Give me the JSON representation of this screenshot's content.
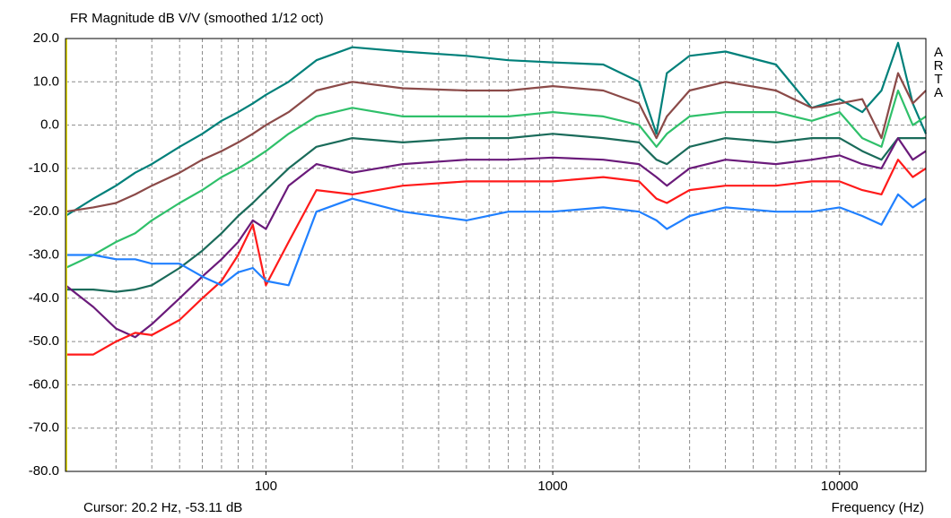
{
  "chart_data": {
    "type": "line",
    "title": "FR Magnitude dB V/V (smoothed 1/12 oct)",
    "cursor_text": "Cursor: 20.2 Hz, -53.11 dB",
    "x_label": "Frequency (Hz)",
    "brand": "ARTA",
    "log_x": true,
    "grid": true,
    "xlim": [
      20,
      20000
    ],
    "ylim": [
      -80,
      20
    ],
    "xticks": [
      100,
      1000,
      10000
    ],
    "xgrid": [
      30,
      40,
      50,
      60,
      70,
      80,
      90,
      100,
      200,
      300,
      400,
      500,
      600,
      700,
      800,
      900,
      1000,
      2000,
      3000,
      4000,
      5000,
      6000,
      7000,
      8000,
      9000,
      10000
    ],
    "yticks": [
      {
        "value": -80,
        "label": "-80.0"
      },
      {
        "value": -70,
        "label": "-70.0"
      },
      {
        "value": -60,
        "label": "-60.0"
      },
      {
        "value": -50,
        "label": "-50.0"
      },
      {
        "value": -40,
        "label": "-40.0"
      },
      {
        "value": -30,
        "label": "-30.0"
      },
      {
        "value": -20,
        "label": "-20.0"
      },
      {
        "value": -10,
        "label": "-10.0"
      },
      {
        "value": 0,
        "label": "0.0"
      },
      {
        "value": 10,
        "label": "10.0"
      },
      {
        "value": 20,
        "label": "20.0"
      }
    ],
    "x": [
      20,
      25,
      30,
      35,
      40,
      50,
      60,
      70,
      80,
      90,
      100,
      120,
      150,
      200,
      300,
      500,
      700,
      1000,
      1500,
      2000,
      2300,
      2500,
      3000,
      4000,
      6000,
      8000,
      10000,
      12000,
      14000,
      16000,
      18000,
      20000
    ],
    "series": [
      {
        "color": "#00807a",
        "values": [
          -21,
          -17,
          -14,
          -11,
          -9,
          -5,
          -2,
          1,
          3,
          5,
          7,
          10,
          15,
          18,
          17,
          16,
          15,
          14.5,
          14,
          10,
          -2,
          12,
          16,
          17,
          14,
          4,
          6,
          3,
          8,
          19,
          5,
          -2
        ]
      },
      {
        "color": "#8b4a48",
        "values": [
          -20,
          -19,
          -18,
          -16,
          -14,
          -11,
          -8,
          -6,
          -4,
          -2,
          0,
          3,
          8,
          10,
          8.5,
          8,
          8,
          9,
          8,
          5,
          -3,
          2,
          8,
          10,
          8,
          4,
          5,
          6,
          -3,
          12,
          5,
          8
        ]
      },
      {
        "color": "#2fc06a",
        "values": [
          -33,
          -30,
          -27,
          -25,
          -22,
          -18,
          -15,
          -12,
          -10,
          -8,
          -6,
          -2,
          2,
          4,
          2,
          2,
          2,
          3,
          2,
          0,
          -5,
          -2,
          2,
          3,
          3,
          1,
          3,
          -3,
          -5,
          8,
          0,
          2
        ]
      },
      {
        "color": "#1a6b5a",
        "values": [
          -38,
          -38,
          -38.5,
          -38,
          -37,
          -33,
          -29,
          -25,
          -21,
          -18,
          -15,
          -10,
          -5,
          -3,
          -4,
          -3,
          -3,
          -2,
          -3,
          -4,
          -8,
          -9,
          -5,
          -3,
          -4,
          -3,
          -3,
          -6,
          -8,
          -3,
          -3,
          -3
        ]
      },
      {
        "color": "#6a1a7a",
        "values": [
          -37,
          -42,
          -47,
          -49,
          -46,
          -40,
          -35,
          -31,
          -27,
          -22,
          -24,
          -14,
          -9,
          -11,
          -9,
          -8,
          -8,
          -7.5,
          -8,
          -9,
          -12,
          -14,
          -10,
          -8,
          -9,
          -8,
          -7,
          -9,
          -10,
          -3,
          -8,
          -6
        ]
      },
      {
        "color": "#ff1a1a",
        "values": [
          -53,
          -53,
          -50,
          -48,
          -48.5,
          -45,
          -40,
          -36,
          -30,
          -23,
          -37,
          -27,
          -15,
          -16,
          -14,
          -13,
          -13,
          -13,
          -12,
          -13,
          -17,
          -18,
          -15,
          -14,
          -14,
          -13,
          -13,
          -15,
          -16,
          -8,
          -12,
          -10
        ]
      },
      {
        "color": "#2080ff",
        "values": [
          -30,
          -30,
          -31,
          -31,
          -32,
          -32,
          -35,
          -37,
          -34,
          -33,
          -36,
          -37,
          -20,
          -17,
          -20,
          -22,
          -20,
          -20,
          -19,
          -20,
          -22,
          -24,
          -21,
          -19,
          -20,
          -20,
          -19,
          -21,
          -23,
          -16,
          -19,
          -17
        ]
      }
    ]
  }
}
